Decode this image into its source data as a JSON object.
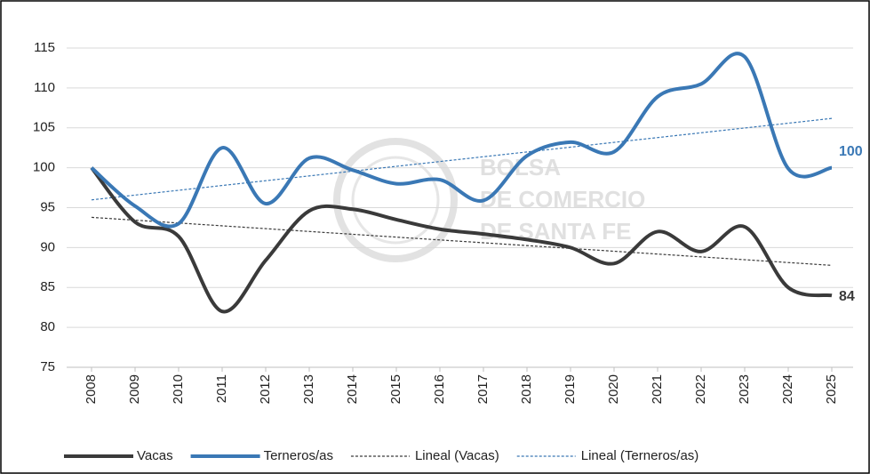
{
  "chart_data": {
    "type": "line",
    "x": [
      "2008",
      "2009",
      "2010",
      "2011",
      "2012",
      "2013",
      "2014",
      "2015",
      "2016",
      "2017",
      "2018",
      "2019",
      "2020",
      "2021",
      "2022",
      "2023",
      "2024",
      "2025"
    ],
    "series": [
      {
        "name": "Vacas",
        "color": "#3a3a3a",
        "values": [
          100,
          93.2,
          91.4,
          82,
          88.4,
          94.6,
          94.8,
          93.5,
          92.3,
          91.7,
          91,
          90,
          88,
          92,
          89.5,
          92.6,
          85,
          84
        ],
        "trendline": {
          "name": "Lineal (Vacas)",
          "color": "#3a3a3a"
        }
      },
      {
        "name": "Terneros/as",
        "color": "#3a78b5",
        "values": [
          100,
          95.2,
          93,
          102.5,
          95.5,
          101.2,
          99.7,
          98,
          98.5,
          95.9,
          101.5,
          103.2,
          102,
          108.9,
          110.5,
          113.9,
          99.9,
          100
        ],
        "trendline": {
          "name": "Lineal (Terneros/as)",
          "color": "#3a78b5"
        }
      }
    ],
    "ylim": [
      75,
      115
    ],
    "yticks": [
      75,
      80,
      85,
      90,
      95,
      100,
      105,
      110,
      115
    ],
    "grid": true,
    "legend": "bottom",
    "watermark": [
      "BOLSA",
      "DE COMERCIO",
      "DE SANTA FE"
    ]
  }
}
